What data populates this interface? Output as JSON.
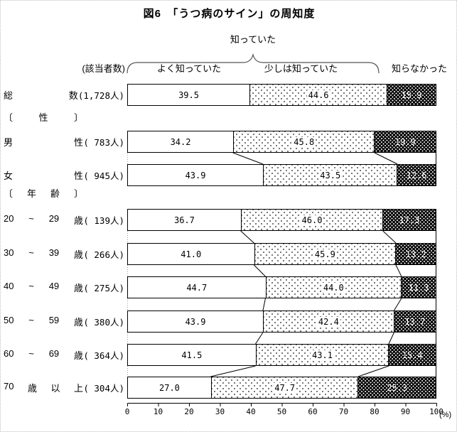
{
  "title": "図6　「うつ病のサイン」の周知度",
  "legend": {
    "group_label": "知っていた",
    "respondents_header": "(該当者数)",
    "series": [
      "よく知っていた",
      "少しは知っていた",
      "知らなかった"
    ]
  },
  "chart_data": {
    "type": "bar",
    "stacked": true,
    "orientation": "horizontal",
    "title": "図6　「うつ病のサイン」の周知度",
    "series": [
      "よく知っていた",
      "少しは知っていた",
      "知らなかった"
    ],
    "xlim": [
      0,
      100
    ],
    "x_ticks": [
      0,
      10,
      20,
      30,
      40,
      50,
      60,
      70,
      80,
      90,
      100
    ],
    "x_unit": "(%)",
    "rows": [
      {
        "label": "総数",
        "parts": [
          "総",
          "数"
        ],
        "count": "(1,728人)",
        "values": [
          39.5,
          44.6,
          15.9
        ]
      },
      {
        "section": "性",
        "parts": [
          "〔",
          "性",
          "〕"
        ]
      },
      {
        "label": "男性",
        "parts": [
          "男",
          "性"
        ],
        "count": "( 783人)",
        "values": [
          34.2,
          45.8,
          19.9
        ]
      },
      {
        "label": "女性",
        "parts": [
          "女",
          "性"
        ],
        "count": "( 945人)",
        "values": [
          43.9,
          43.5,
          12.6
        ]
      },
      {
        "section": "年齢",
        "parts": [
          "〔",
          "年",
          "齢",
          "〕"
        ]
      },
      {
        "label": "20~29歳",
        "parts": [
          "20",
          "~",
          "29",
          "歳"
        ],
        "count": "( 139人)",
        "values": [
          36.7,
          46.0,
          17.3
        ]
      },
      {
        "label": "30~39歳",
        "parts": [
          "30",
          "~",
          "39",
          "歳"
        ],
        "count": "( 266人)",
        "values": [
          41.0,
          45.9,
          13.2
        ]
      },
      {
        "label": "40~49歳",
        "parts": [
          "40",
          "~",
          "49",
          "歳"
        ],
        "count": "( 275人)",
        "values": [
          44.7,
          44.0,
          11.3
        ]
      },
      {
        "label": "50~59歳",
        "parts": [
          "50",
          "~",
          "59",
          "歳"
        ],
        "count": "( 380人)",
        "values": [
          43.9,
          42.4,
          13.7
        ]
      },
      {
        "label": "60~69歳",
        "parts": [
          "60",
          "~",
          "69",
          "歳"
        ],
        "count": "( 364人)",
        "values": [
          41.5,
          43.1,
          15.4
        ]
      },
      {
        "label": "70歳以上",
        "parts": [
          "70",
          "歳",
          "以",
          "上"
        ],
        "count": "( 304人)",
        "values": [
          27.0,
          47.7,
          25.3
        ]
      }
    ]
  }
}
